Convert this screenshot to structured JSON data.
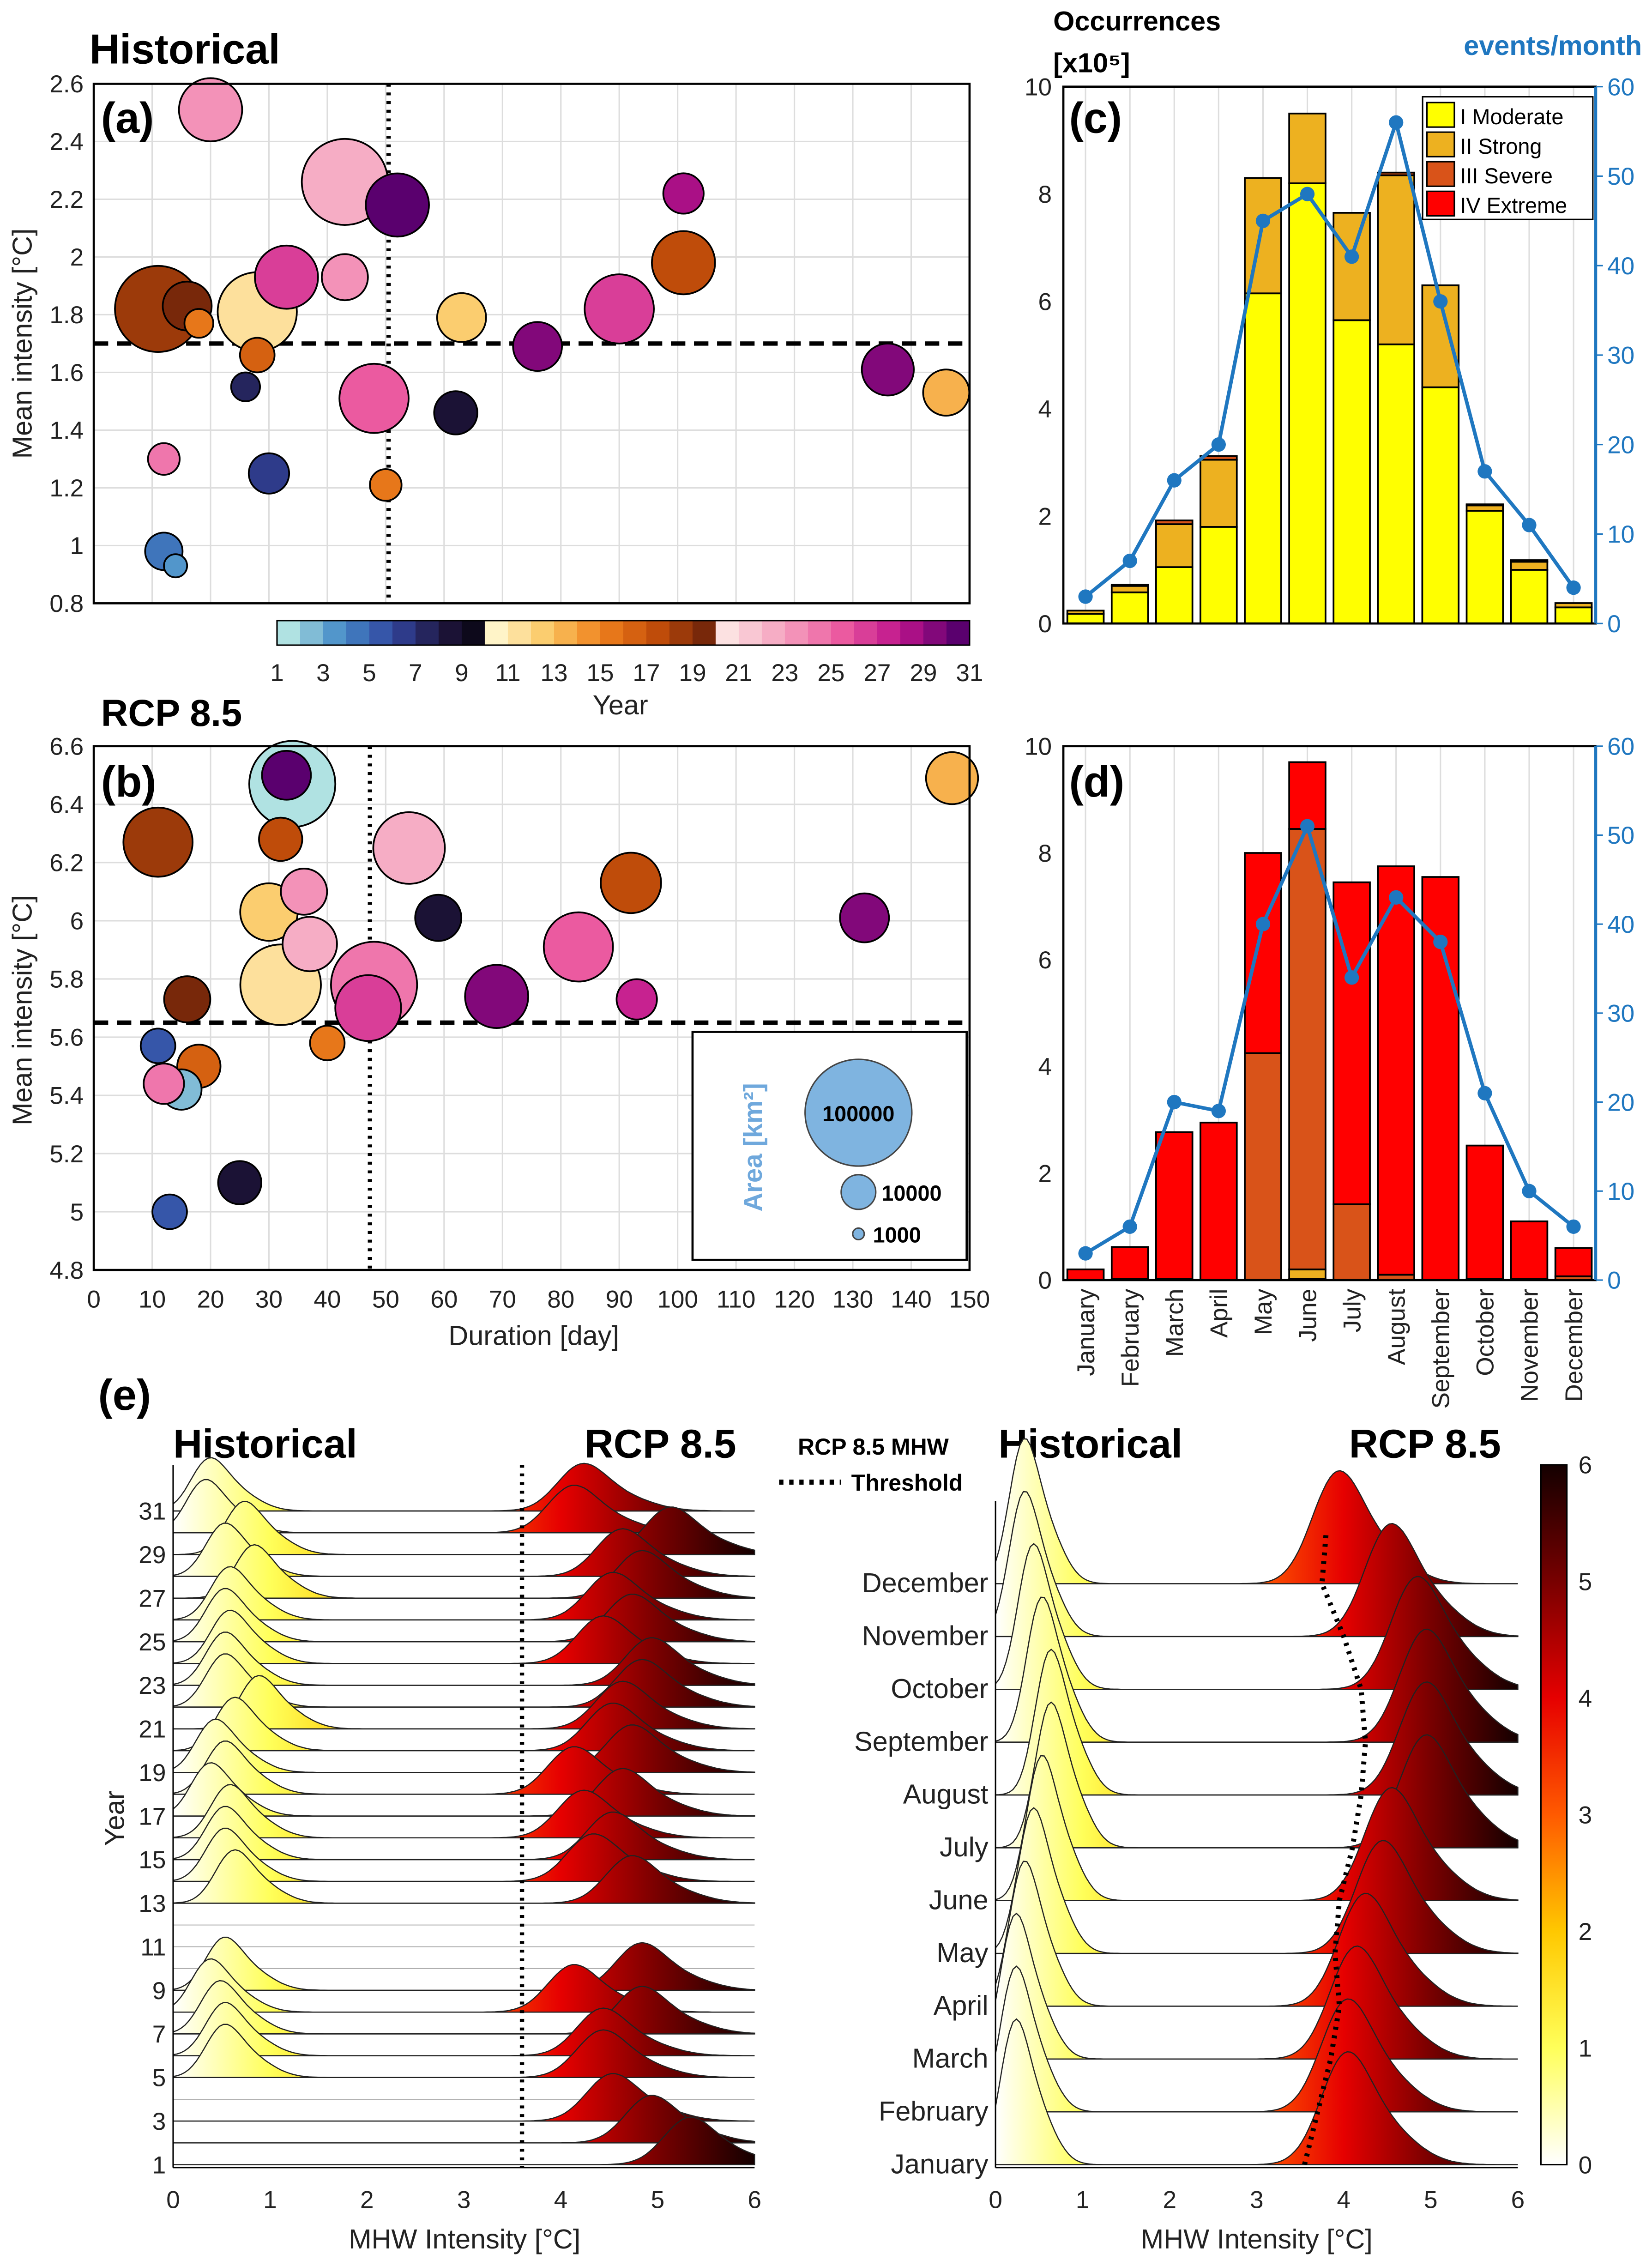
{
  "panel_titles": {
    "a": "Historical",
    "b": "RCP 8.5",
    "e_left_hist": "Historical",
    "e_left_rcp": "RCP 8.5",
    "e_right_hist": "Historical",
    "e_right_rcp": "RCP 8.5"
  },
  "panel_letters": {
    "a": "(a)",
    "b": "(b)",
    "c": "(c)",
    "d": "(d)",
    "e": "(e)"
  },
  "threshold_legend": {
    "line1": "RCP 8.5 MHW",
    "line2": "Threshold"
  },
  "area_legend": {
    "title": "Area [km²]",
    "entries": [
      "100000",
      "10000",
      "1000"
    ],
    "values": [
      100000,
      10000,
      1000
    ]
  },
  "colors": {
    "moderate": "#ffff00",
    "strong": "#edb120",
    "severe": "#d95319",
    "extreme": "#ff0000",
    "events": "#1f77c0"
  },
  "chart_data": [
    {
      "id": "a",
      "type": "scatter",
      "title": "Historical",
      "xlabel": "Duration [day]",
      "ylabel": "Mean intensity [°C]",
      "xlim": [
        0,
        150
      ],
      "ylim": [
        0.8,
        2.6
      ],
      "yticks": [
        "0.8",
        "1",
        "1.2",
        "1.4",
        "1.6",
        "1.8",
        "2",
        "2.2",
        "2.4",
        "2.6"
      ],
      "mean_intensity_line": 1.7,
      "mean_duration_line": 50.5,
      "colorbar": {
        "label": "Year",
        "ticks": [
          "1",
          "3",
          "5",
          "7",
          "9",
          "11",
          "13",
          "15",
          "17",
          "19",
          "21",
          "23",
          "25",
          "27",
          "29",
          "31"
        ],
        "range": [
          1,
          31
        ]
      },
      "points": [
        {
          "duration": 11,
          "intensity": 1.82,
          "year": 19,
          "area": 65000
        },
        {
          "duration": 16,
          "intensity": 1.83,
          "year": 20,
          "area": 21000
        },
        {
          "duration": 18,
          "intensity": 1.77,
          "year": 16,
          "area": 7300
        },
        {
          "duration": 28,
          "intensity": 1.81,
          "year": 12,
          "area": 55000
        },
        {
          "duration": 33,
          "intensity": 1.93,
          "year": 27,
          "area": 35000
        },
        {
          "duration": 43,
          "intensity": 1.93,
          "year": 24,
          "area": 18700
        },
        {
          "duration": 43,
          "intensity": 2.26,
          "year": 23,
          "area": 65000
        },
        {
          "duration": 52,
          "intensity": 2.18,
          "year": 31,
          "area": 35000
        },
        {
          "duration": 20,
          "intensity": 2.51,
          "year": 24,
          "area": 35000
        },
        {
          "duration": 28,
          "intensity": 1.66,
          "year": 17,
          "area": 10500
        },
        {
          "duration": 26,
          "intensity": 1.55,
          "year": 7,
          "area": 7300
        },
        {
          "duration": 12,
          "intensity": 1.3,
          "year": 25,
          "area": 8800
        },
        {
          "duration": 12,
          "intensity": 0.98,
          "year": 4,
          "area": 12300
        },
        {
          "duration": 14,
          "intensity": 0.93,
          "year": 3,
          "area": 4700
        },
        {
          "duration": 30,
          "intensity": 1.25,
          "year": 6,
          "area": 14300
        },
        {
          "duration": 48,
          "intensity": 1.51,
          "year": 26,
          "area": 42000
        },
        {
          "duration": 50,
          "intensity": 1.21,
          "year": 16,
          "area": 8800
        },
        {
          "duration": 62,
          "intensity": 1.46,
          "year": 8,
          "area": 16400
        },
        {
          "duration": 63,
          "intensity": 1.79,
          "year": 13,
          "area": 21000
        },
        {
          "duration": 76,
          "intensity": 1.69,
          "year": 30,
          "area": 21000
        },
        {
          "duration": 90,
          "intensity": 1.82,
          "year": 27,
          "area": 42000
        },
        {
          "duration": 101,
          "intensity": 2.22,
          "year": 29,
          "area": 14300
        },
        {
          "duration": 101,
          "intensity": 1.98,
          "year": 18,
          "area": 35000
        },
        {
          "duration": 136,
          "intensity": 1.61,
          "year": 30,
          "area": 23700
        },
        {
          "duration": 146,
          "intensity": 1.53,
          "year": 14,
          "area": 18700
        }
      ]
    },
    {
      "id": "b",
      "type": "scatter",
      "title": "RCP 8.5",
      "xlabel": "Duration [day]",
      "ylabel": "Mean intensity [°C]",
      "xlim": [
        0,
        150
      ],
      "ylim": [
        4.8,
        6.6
      ],
      "xticks": [
        "0",
        "10",
        "20",
        "30",
        "40",
        "50",
        "60",
        "70",
        "80",
        "90",
        "100",
        "110",
        "120",
        "130",
        "140",
        "150"
      ],
      "yticks": [
        "4.8",
        "5",
        "5.2",
        "5.4",
        "5.6",
        "5.8",
        "6",
        "6.2",
        "6.4",
        "6.6"
      ],
      "mean_intensity_line": 5.65,
      "mean_duration_line": 47.3,
      "points": [
        {
          "duration": 11,
          "intensity": 6.27,
          "year": 19,
          "area": 42000
        },
        {
          "duration": 34,
          "intensity": 6.47,
          "year": 1,
          "area": 65000
        },
        {
          "duration": 33,
          "intensity": 6.5,
          "year": 31,
          "area": 21000
        },
        {
          "duration": 32,
          "intensity": 6.28,
          "year": 18,
          "area": 16400
        },
        {
          "duration": 36,
          "intensity": 6.1,
          "year": 24,
          "area": 18700
        },
        {
          "duration": 30,
          "intensity": 6.03,
          "year": 13,
          "area": 29000
        },
        {
          "duration": 37,
          "intensity": 5.92,
          "year": 23,
          "area": 26000
        },
        {
          "duration": 32,
          "intensity": 5.78,
          "year": 12,
          "area": 57000
        },
        {
          "duration": 48,
          "intensity": 5.78,
          "year": 25,
          "area": 65000
        },
        {
          "duration": 47,
          "intensity": 5.7,
          "year": 27,
          "area": 38000
        },
        {
          "duration": 40,
          "intensity": 5.58,
          "year": 16,
          "area": 10500
        },
        {
          "duration": 16,
          "intensity": 5.73,
          "year": 20,
          "area": 18700
        },
        {
          "duration": 11,
          "intensity": 5.57,
          "year": 5,
          "area": 10500
        },
        {
          "duration": 15,
          "intensity": 5.42,
          "year": 2,
          "area": 14300
        },
        {
          "duration": 18,
          "intensity": 5.5,
          "year": 17,
          "area": 16400
        },
        {
          "duration": 12,
          "intensity": 5.44,
          "year": 25,
          "area": 14300
        },
        {
          "duration": 13,
          "intensity": 5.0,
          "year": 5,
          "area": 10500
        },
        {
          "duration": 25,
          "intensity": 5.1,
          "year": 8,
          "area": 16400
        },
        {
          "duration": 54,
          "intensity": 6.25,
          "year": 23,
          "area": 45000
        },
        {
          "duration": 59,
          "intensity": 6.01,
          "year": 8,
          "area": 18700
        },
        {
          "duration": 69,
          "intensity": 5.74,
          "year": 30,
          "area": 35000
        },
        {
          "duration": 83,
          "intensity": 5.91,
          "year": 26,
          "area": 42000
        },
        {
          "duration": 92,
          "intensity": 6.13,
          "year": 18,
          "area": 32000
        },
        {
          "duration": 93,
          "intensity": 5.73,
          "year": 28,
          "area": 14300
        },
        {
          "duration": 132,
          "intensity": 6.01,
          "year": 30,
          "area": 21000
        },
        {
          "duration": 147,
          "intensity": 6.49,
          "year": 14,
          "area": 23700
        }
      ]
    },
    {
      "id": "c",
      "type": "bar",
      "stacked": true,
      "ylabel": "Occurrences",
      "ylabel_units": "[x10⁵]",
      "y2label": "events/month",
      "ylim": [
        0,
        10
      ],
      "y2lim": [
        0,
        60
      ],
      "yticks": [
        "0",
        "2",
        "4",
        "6",
        "8",
        "10"
      ],
      "y2ticks": [
        "0",
        "10",
        "20",
        "30",
        "40",
        "50",
        "60"
      ],
      "legend_position": "top-right",
      "categories": [
        "January",
        "February",
        "March",
        "April",
        "May",
        "June",
        "July",
        "August",
        "September",
        "October",
        "November",
        "December"
      ],
      "series": [
        {
          "name": "I   Moderate",
          "values": [
            0.18,
            0.58,
            1.05,
            1.8,
            6.15,
            8.2,
            5.65,
            5.2,
            4.4,
            2.1,
            1.0,
            0.3
          ]
        },
        {
          "name": "II  Strong",
          "values": [
            0.06,
            0.12,
            0.8,
            1.25,
            2.15,
            1.3,
            2.0,
            3.15,
            1.9,
            0.1,
            0.15,
            0.08
          ]
        },
        {
          "name": "III Severe",
          "values": [
            0,
            0.02,
            0.07,
            0.07,
            0,
            0,
            0,
            0.05,
            0,
            0.02,
            0.03,
            0
          ]
        },
        {
          "name": "IV Extreme",
          "values": [
            0,
            0,
            0,
            0,
            0,
            0,
            0,
            0,
            0,
            0,
            0,
            0
          ]
        }
      ],
      "line_series": {
        "name": "events/month",
        "values": [
          3,
          7,
          16,
          20,
          45,
          48,
          41,
          56,
          36,
          17,
          11,
          4
        ]
      }
    },
    {
      "id": "d",
      "type": "bar",
      "stacked": true,
      "ylim": [
        0,
        10
      ],
      "y2lim": [
        0,
        60
      ],
      "yticks": [
        "0",
        "2",
        "4",
        "6",
        "8",
        "10"
      ],
      "y2ticks": [
        "0",
        "10",
        "20",
        "30",
        "40",
        "50",
        "60"
      ],
      "categories": [
        "January",
        "February",
        "March",
        "April",
        "May",
        "June",
        "July",
        "August",
        "September",
        "October",
        "November",
        "December"
      ],
      "series": [
        {
          "name": "I   Moderate",
          "values": [
            0,
            0,
            0,
            0,
            0,
            0.02,
            0,
            0,
            0,
            0,
            0,
            0
          ]
        },
        {
          "name": "II  Strong",
          "values": [
            0,
            0,
            0,
            0,
            0,
            0.18,
            0,
            0,
            0,
            0,
            0,
            0
          ]
        },
        {
          "name": "III Severe",
          "values": [
            0,
            0.02,
            0.02,
            0,
            4.25,
            8.25,
            1.42,
            0.1,
            0,
            0.02,
            0.02,
            0.07
          ]
        },
        {
          "name": "IV Extreme",
          "values": [
            0.2,
            0.6,
            2.75,
            2.95,
            3.75,
            1.25,
            6.03,
            7.65,
            7.55,
            2.5,
            1.08,
            0.53
          ]
        }
      ],
      "line_series": {
        "name": "events/month",
        "values": [
          3,
          6,
          20,
          19,
          40,
          51,
          34,
          43,
          38,
          21,
          10,
          6
        ]
      }
    },
    {
      "id": "e-left",
      "type": "area",
      "subtype": "ridgeline",
      "xlabel": "MHW Intensity [°C]",
      "ylabel": "Year",
      "xlim": [
        0,
        6
      ],
      "xticks": [
        "0",
        "1",
        "2",
        "3",
        "4",
        "5",
        "6"
      ],
      "yticks": [
        "1",
        "3",
        "5",
        "7",
        "9",
        "11",
        "13",
        "15",
        "17",
        "19",
        "21",
        "23",
        "25",
        "27",
        "29",
        "31"
      ],
      "threshold": 3.6,
      "historical_peak": [
        null,
        null,
        null,
        null,
        0.5,
        0.5,
        0.45,
        0.35,
        0.5,
        null,
        null,
        null,
        0.6,
        0.5,
        0.5,
        0.55,
        0.35,
        0.5,
        0.4,
        0.6,
        0.85,
        0.5,
        0.5,
        0.55,
        0.5,
        0.55,
        0.8,
        0.5,
        0.7,
        0.3,
        0.35
      ],
      "rcp_peak": [
        5.3,
        4.9,
        4.5,
        null,
        4.4,
        4.4,
        4.8,
        4.1,
        4.8,
        null,
        null,
        null,
        4.7,
        4.3,
        4.5,
        4.2,
        4.6,
        4.1,
        4.7,
        4.5,
        4.6,
        4.8,
        4.9,
        4.4,
        4.7,
        4.5,
        4.8,
        4.6,
        5.1,
        4.1,
        4.2
      ]
    },
    {
      "id": "e-right",
      "type": "area",
      "subtype": "ridgeline",
      "xlabel": "MHW Intensity [°C]",
      "xlim": [
        0,
        6
      ],
      "xticks": [
        "0",
        "1",
        "2",
        "3",
        "4",
        "5",
        "6"
      ],
      "categories": [
        "January",
        "February",
        "March",
        "April",
        "May",
        "June",
        "July",
        "August",
        "September",
        "October",
        "November",
        "December"
      ],
      "historical_peak": [
        0.2,
        0.2,
        0.2,
        0.3,
        0.4,
        0.5,
        0.6,
        0.6,
        0.5,
        0.4,
        0.3,
        0.3
      ],
      "rcp_peak": [
        4.0,
        4.0,
        4.1,
        4.2,
        4.4,
        4.5,
        4.9,
        4.9,
        4.9,
        4.8,
        4.5,
        3.9
      ],
      "threshold_by_month": [
        3.55,
        3.7,
        3.85,
        3.95,
        3.9,
        3.95,
        4.1,
        4.2,
        4.25,
        4.2,
        4.0,
        3.75
      ],
      "colorbar": {
        "ticks": [
          "0",
          "1",
          "2",
          "3",
          "4",
          "5",
          "6"
        ],
        "range": [
          0,
          6
        ]
      }
    }
  ]
}
